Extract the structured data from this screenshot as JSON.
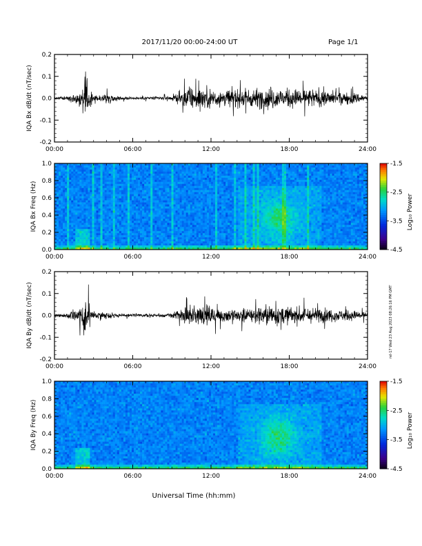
{
  "header": {
    "title": "2017/11/20  00:00-24:00 UT",
    "page": "Page 1/1"
  },
  "side_note": "rel-17 Wed 23 Aug 2023 08:26:16 PM GMT",
  "chart_data": [
    {
      "type": "line",
      "ylabel": "IQA Bx dB/dt (nT/sec)",
      "x_range": [
        "00:00",
        "24:00"
      ],
      "ylim": [
        -0.2,
        0.2
      ],
      "yticks": [
        "0.2",
        "0.1",
        "0.0",
        "-0.1",
        "-0.2"
      ],
      "xticks": [
        "00:00",
        "06:00",
        "12:00",
        "18:00",
        "24:00"
      ],
      "envelope": {
        "hours": [
          0,
          1,
          2,
          2.3,
          2.6,
          3,
          4,
          5,
          6,
          8,
          9,
          9.5,
          10,
          11,
          12,
          13,
          14,
          15,
          16,
          16.5,
          17,
          18,
          19,
          20,
          21,
          22,
          23,
          24
        ],
        "amplitude": [
          0.012,
          0.015,
          0.07,
          0.2,
          0.1,
          0.02,
          0.04,
          0.015,
          0.012,
          0.015,
          0.02,
          0.05,
          0.08,
          0.09,
          0.085,
          0.075,
          0.07,
          0.07,
          0.09,
          0.095,
          0.085,
          0.075,
          0.08,
          0.075,
          0.065,
          0.05,
          0.045,
          0.03
        ]
      }
    },
    {
      "type": "heatmap",
      "ylabel": "IQA Bx Freq (Hz)",
      "x_range": [
        "00:00",
        "24:00"
      ],
      "ylim": [
        0.0,
        1.0
      ],
      "yticks": [
        "1.0",
        "0.8",
        "0.6",
        "0.4",
        "0.2",
        "0.0"
      ],
      "xticks": [
        "00:00",
        "06:00",
        "12:00",
        "18:00",
        "24:00"
      ],
      "colorbar": {
        "label": "Log₁₀ Power",
        "ticks": [
          "-1.5",
          "-2.5",
          "-3.5",
          "-4.5"
        ],
        "range": [
          -4.5,
          -1.5
        ]
      }
    },
    {
      "type": "line",
      "ylabel": "IQA By dB/dt (nT/sec)",
      "x_range": [
        "00:00",
        "24:00"
      ],
      "ylim": [
        -0.2,
        0.2
      ],
      "yticks": [
        "0.2",
        "0.1",
        "0.0",
        "-0.1",
        "-0.2"
      ],
      "xticks": [
        "00:00",
        "06:00",
        "12:00",
        "18:00",
        "24:00"
      ],
      "envelope": {
        "hours": [
          0,
          1,
          2,
          2.3,
          2.6,
          3,
          4,
          5,
          6,
          8,
          9,
          9.5,
          10,
          11,
          12,
          13,
          14,
          15,
          16,
          16.5,
          17,
          18,
          19,
          20,
          21,
          22,
          23,
          24
        ],
        "amplitude": [
          0.015,
          0.02,
          0.08,
          0.19,
          0.12,
          0.025,
          0.03,
          0.015,
          0.012,
          0.015,
          0.02,
          0.05,
          0.07,
          0.08,
          0.075,
          0.065,
          0.06,
          0.06,
          0.08,
          0.09,
          0.08,
          0.07,
          0.07,
          0.06,
          0.055,
          0.045,
          0.04,
          0.03
        ]
      }
    },
    {
      "type": "heatmap",
      "ylabel": "IQA By Freq (Hz)",
      "x_range": [
        "00:00",
        "24:00"
      ],
      "ylim": [
        0.0,
        1.0
      ],
      "yticks": [
        "1.0",
        "0.8",
        "0.6",
        "0.4",
        "0.2",
        "0.0"
      ],
      "xticks": [
        "00:00",
        "06:00",
        "12:00",
        "18:00",
        "24:00"
      ],
      "colorbar": {
        "label": "Log₁₀ Power",
        "ticks": [
          "-1.5",
          "-2.5",
          "-3.5",
          "-4.5"
        ],
        "range": [
          -4.5,
          -1.5
        ]
      }
    }
  ],
  "xlabel": "Universal Time (hh:mm)"
}
